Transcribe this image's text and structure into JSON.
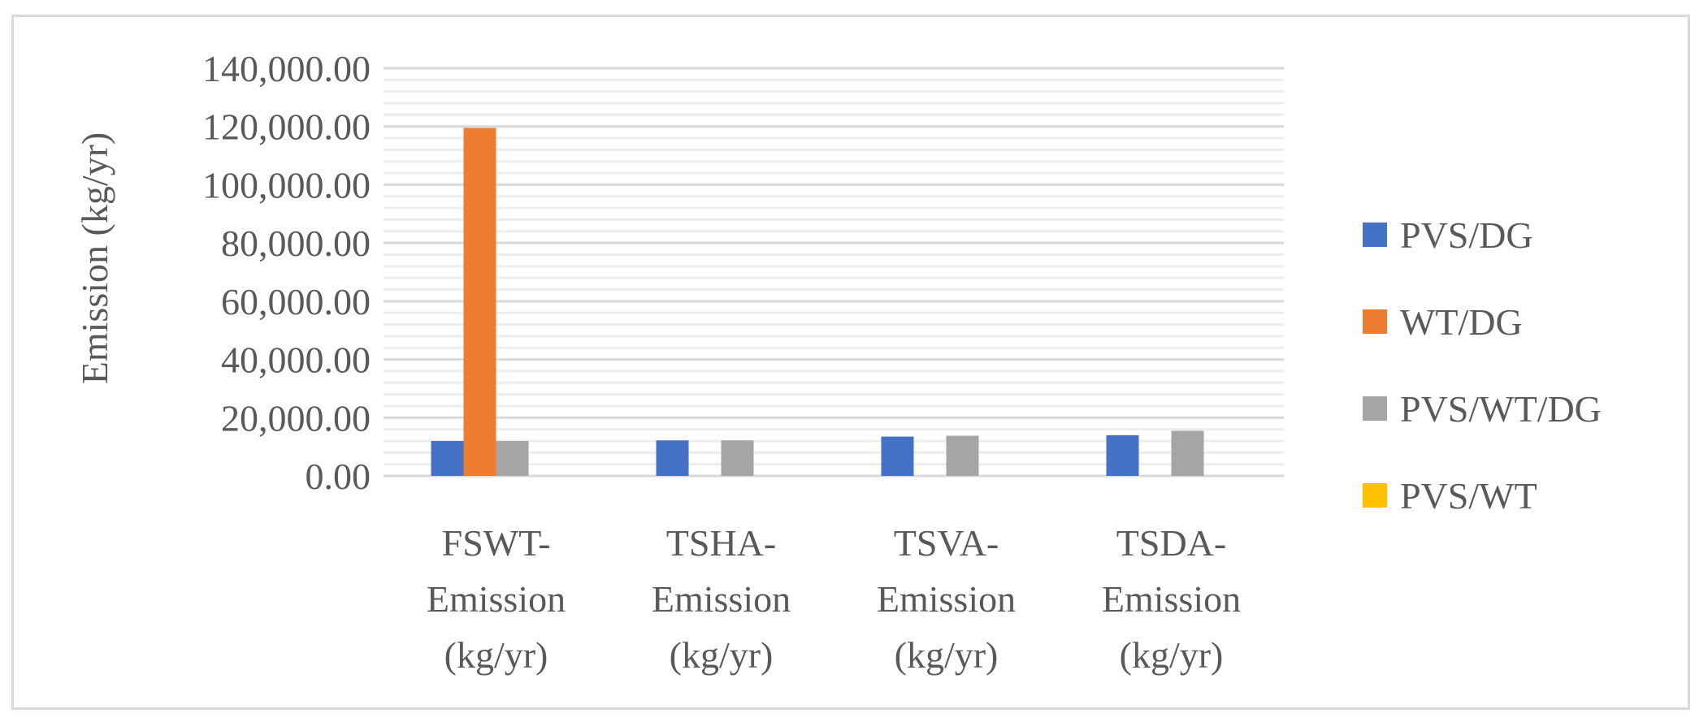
{
  "chart_data": {
    "type": "bar",
    "title": "",
    "xlabel": "",
    "ylabel": "Emission (kg/yr)",
    "ylim": [
      0,
      140000
    ],
    "ytick_step": 20000,
    "minor_grid_step": 4000,
    "ytick_labels": [
      "0.00",
      "20,000.00",
      "40,000.00",
      "60,000.00",
      "80,000.00",
      "100,000.00",
      "120,000.00",
      "140,000.00"
    ],
    "categories": [
      [
        "FSWT-",
        "Emission",
        "(kg/yr)"
      ],
      [
        "TSHA-",
        "Emission",
        "(kg/yr)"
      ],
      [
        "TSVA-",
        "Emission",
        "(kg/yr)"
      ],
      [
        "TSDA-",
        "Emission",
        "(kg/yr)"
      ]
    ],
    "series": [
      {
        "name": "PVS/DG",
        "color": "#4472c4",
        "values": [
          12000,
          12200,
          13500,
          14000
        ]
      },
      {
        "name": "WT/DG",
        "color": "#ed7d31",
        "values": [
          119500,
          0,
          0,
          0
        ]
      },
      {
        "name": "PVS/WT/DG",
        "color": "#a5a5a5",
        "values": [
          12000,
          12200,
          13800,
          15500
        ]
      },
      {
        "name": "PVS/WT",
        "color": "#ffc000",
        "values": [
          0,
          0,
          0,
          0
        ]
      }
    ],
    "grid": true,
    "legend_position": "right"
  }
}
